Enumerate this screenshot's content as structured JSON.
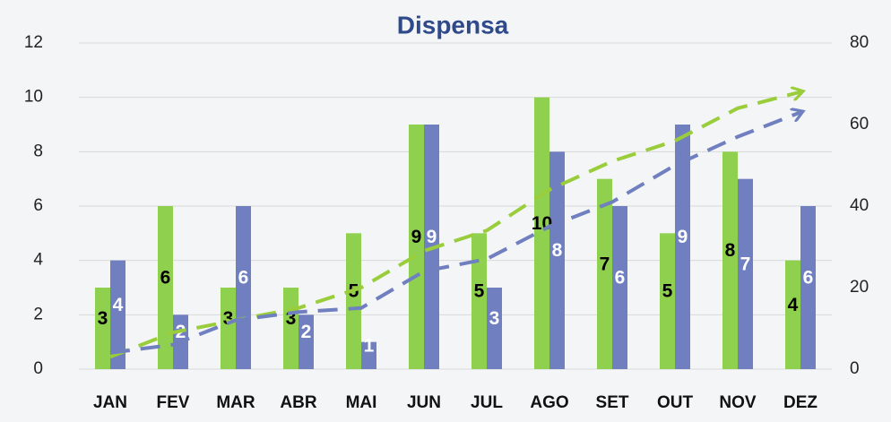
{
  "chart_data": {
    "type": "bar",
    "title": "Dispensa",
    "categories": [
      "JAN",
      "FEV",
      "MAR",
      "ABR",
      "MAI",
      "JUN",
      "JUL",
      "AGO",
      "SET",
      "OUT",
      "NOV",
      "DEZ"
    ],
    "series": [
      {
        "color": "#8fd14f",
        "label_color": "#000000",
        "values": [
          3,
          6,
          3,
          3,
          5,
          9,
          5,
          10,
          7,
          5,
          8,
          4
        ]
      },
      {
        "color": "#6f7fbf",
        "label_color": "#ffffff",
        "values": [
          4,
          2,
          6,
          2,
          1,
          9,
          3,
          8,
          6,
          9,
          7,
          6
        ]
      },
      {
        "type": "line",
        "axis": "y2",
        "color": "#9acd3c",
        "values": [
          3,
          9,
          12,
          15,
          20,
          29,
          34,
          44,
          51,
          56,
          64,
          68
        ]
      },
      {
        "type": "line",
        "axis": "y2",
        "color": "#6f7fbf",
        "values": [
          4,
          6,
          12,
          14,
          15,
          24,
          27,
          35,
          41,
          50,
          57,
          63
        ]
      }
    ],
    "ylim": [
      0,
      12
    ],
    "yticks": [
      0,
      2,
      4,
      6,
      8,
      10,
      12
    ],
    "y2lim": [
      0,
      80
    ],
    "y2ticks": [
      0,
      20,
      40,
      60,
      80
    ],
    "grid": true
  }
}
